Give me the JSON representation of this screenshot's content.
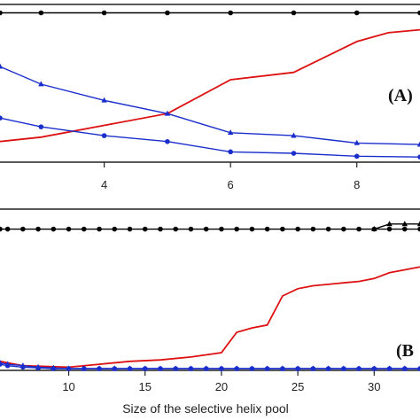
{
  "chart_data": [
    {
      "type": "line",
      "panel_label": "(A)",
      "xlim": [
        2.35,
        9.0
      ],
      "ylim": [
        0,
        1
      ],
      "xticks": [
        "4",
        "6",
        "8"
      ],
      "xtick_values": [
        4,
        6,
        8
      ],
      "grid": false,
      "series": [
        {
          "color": "#000000",
          "marker": "dot",
          "x": [
            2.35,
            3,
            4,
            5,
            6,
            7,
            8,
            9
          ],
          "y": [
            0.985,
            0.985,
            0.985,
            0.985,
            0.985,
            0.985,
            0.985,
            0.985
          ]
        },
        {
          "color": "#dd1111",
          "marker": "none",
          "x": [
            2.35,
            3,
            4,
            5,
            6,
            7,
            8,
            8.5,
            9
          ],
          "y": [
            0.11,
            0.14,
            0.22,
            0.3,
            0.53,
            0.58,
            0.79,
            0.85,
            0.87
          ]
        },
        {
          "color": "#1a2ecc",
          "marker": "triangle",
          "x": [
            2.35,
            3,
            4,
            5,
            6,
            7,
            8,
            9
          ],
          "y": [
            0.62,
            0.5,
            0.39,
            0.3,
            0.17,
            0.15,
            0.1,
            0.09
          ]
        },
        {
          "color": "#1a2ecc",
          "marker": "dot",
          "x": [
            2.35,
            3,
            4,
            5,
            6,
            7,
            8,
            9
          ],
          "y": [
            0.27,
            0.21,
            0.15,
            0.11,
            0.04,
            0.03,
            0.01,
            0.005
          ]
        }
      ]
    },
    {
      "type": "line",
      "panel_label": "(B",
      "xlabel": "Size of the selective helix pool",
      "xlim": [
        5.5,
        33
      ],
      "ylim": [
        0,
        1
      ],
      "xticks": [
        "10",
        "15",
        "20",
        "25",
        "30"
      ],
      "xtick_values": [
        10,
        15,
        20,
        25,
        30
      ],
      "grid": false,
      "series": [
        {
          "color": "#000000",
          "marker": "dot",
          "x": [
            5.5,
            6,
            7,
            8,
            9,
            10,
            11,
            12,
            13,
            14,
            15,
            16,
            17,
            18,
            19,
            20,
            21,
            22,
            23,
            24,
            25,
            26,
            27,
            28,
            29,
            30,
            31,
            32,
            33
          ],
          "y": [
            0.96,
            0.96,
            0.96,
            0.96,
            0.96,
            0.96,
            0.96,
            0.96,
            0.96,
            0.96,
            0.96,
            0.96,
            0.96,
            0.96,
            0.96,
            0.96,
            0.96,
            0.96,
            0.96,
            0.96,
            0.96,
            0.96,
            0.96,
            0.96,
            0.96,
            0.96,
            0.96,
            0.96,
            0.96
          ]
        },
        {
          "color": "#000000",
          "marker": "triangle",
          "x": [
            30,
            31,
            32,
            33
          ],
          "y": [
            0.96,
            0.995,
            0.995,
            0.995
          ]
        },
        {
          "color": "#dd1111",
          "marker": "none",
          "x": [
            5.5,
            7,
            10,
            12,
            14,
            16,
            18,
            20,
            21,
            22,
            23,
            24,
            25,
            26,
            27,
            28,
            29,
            30,
            31,
            32,
            33
          ],
          "y": [
            0.05,
            0.02,
            0.01,
            0.03,
            0.05,
            0.06,
            0.08,
            0.11,
            0.25,
            0.28,
            0.3,
            0.5,
            0.55,
            0.57,
            0.58,
            0.59,
            0.6,
            0.62,
            0.66,
            0.68,
            0.7
          ]
        },
        {
          "color": "#1a2ecc",
          "marker": "triangle",
          "x": [
            5.5,
            6,
            7,
            8,
            9,
            10,
            11,
            12,
            13,
            14,
            15,
            16,
            17,
            18,
            19,
            20,
            21,
            22,
            23,
            24,
            25,
            26,
            27,
            28,
            29,
            30,
            31,
            32,
            33
          ],
          "y": [
            0.04,
            0.03,
            0.02,
            0.01,
            0.005,
            0,
            0,
            0,
            0,
            0,
            0,
            0,
            0,
            0,
            0,
            0,
            0,
            0,
            0,
            0,
            0,
            0,
            0,
            0,
            0,
            0,
            0,
            0,
            0
          ]
        },
        {
          "color": "#1a2ecc",
          "marker": "dot",
          "x": [
            5.5,
            6,
            7,
            8,
            9,
            10,
            11,
            12,
            13,
            14,
            15,
            16,
            17,
            18,
            19,
            20,
            21,
            22,
            23,
            24,
            25,
            26,
            27,
            28,
            29,
            30,
            31,
            32,
            33
          ],
          "y": [
            0.03,
            0.02,
            0.01,
            0.005,
            0,
            0,
            0,
            0,
            0,
            0,
            0,
            0,
            0,
            0,
            0,
            0,
            0,
            0,
            0,
            0,
            0,
            0,
            0,
            0,
            0,
            0,
            0,
            0,
            0
          ]
        }
      ]
    }
  ]
}
